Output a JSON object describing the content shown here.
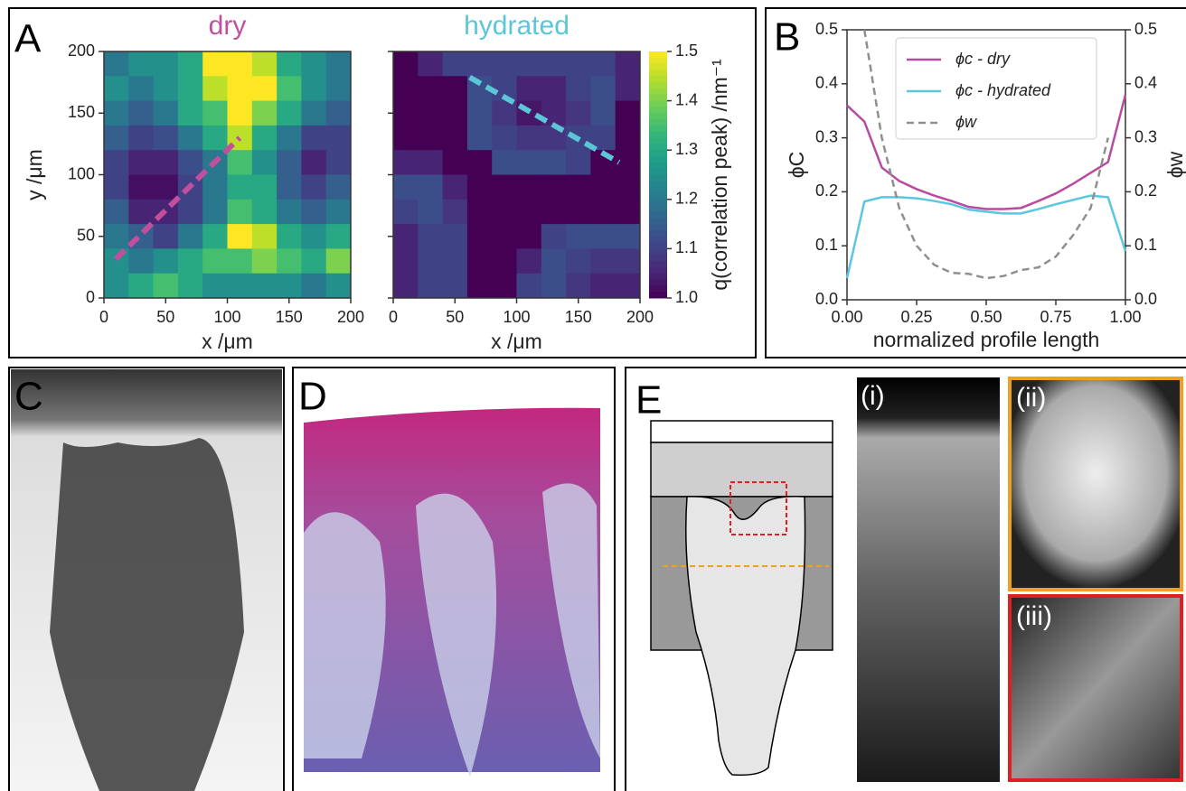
{
  "panels": {
    "a": "A",
    "b": "B",
    "c": "C",
    "d": "D",
    "e": "E",
    "e_i": "(i)",
    "e_ii": "(ii)",
    "e_iii": "(iii)"
  },
  "chart_data": [
    {
      "type": "heatmap",
      "title": "dry",
      "title_color": "#c0509e",
      "xlabel": "x /μm",
      "ylabel": "y /μm",
      "xlim": [
        0,
        200
      ],
      "ylim": [
        0,
        200
      ],
      "xticks": [
        0,
        50,
        100,
        150,
        200
      ],
      "yticks": [
        0,
        50,
        100,
        150,
        200
      ],
      "show_ytick_labels": true,
      "x": [
        10,
        30,
        50,
        70,
        90,
        110,
        130,
        150,
        170,
        190
      ],
      "y": [
        190,
        170,
        150,
        130,
        110,
        90,
        70,
        50,
        30,
        10
      ],
      "z": [
        [
          1.2,
          1.25,
          1.25,
          1.3,
          1.5,
          1.5,
          1.45,
          1.3,
          1.25,
          1.2
        ],
        [
          1.25,
          1.2,
          1.25,
          1.3,
          1.45,
          1.5,
          1.5,
          1.35,
          1.25,
          1.2
        ],
        [
          1.2,
          1.15,
          1.2,
          1.3,
          1.35,
          1.5,
          1.4,
          1.3,
          1.2,
          1.15
        ],
        [
          1.15,
          1.1,
          1.12,
          1.2,
          1.3,
          1.45,
          1.3,
          1.2,
          1.1,
          1.1
        ],
        [
          1.1,
          1.05,
          1.05,
          1.12,
          1.2,
          1.35,
          1.25,
          1.15,
          1.05,
          1.1
        ],
        [
          1.1,
          1.02,
          1.02,
          1.1,
          1.2,
          1.3,
          1.3,
          1.15,
          1.1,
          1.15
        ],
        [
          1.15,
          1.05,
          1.05,
          1.1,
          1.2,
          1.35,
          1.3,
          1.2,
          1.15,
          1.2
        ],
        [
          1.2,
          1.15,
          1.1,
          1.2,
          1.3,
          1.5,
          1.45,
          1.3,
          1.25,
          1.3
        ],
        [
          1.25,
          1.2,
          1.25,
          1.3,
          1.35,
          1.35,
          1.4,
          1.35,
          1.3,
          1.4
        ],
        [
          1.25,
          1.3,
          1.35,
          1.3,
          1.25,
          1.25,
          1.25,
          1.25,
          1.2,
          1.25
        ]
      ],
      "zlim": [
        1.0,
        1.5
      ],
      "profile": {
        "x": [
          9.5,
          110
        ],
        "y": [
          31.5,
          130
        ],
        "color": "#c0509e"
      }
    },
    {
      "type": "heatmap",
      "title": "hydrated",
      "title_color": "#5bc6d8",
      "xlabel": "x /μm",
      "xlim": [
        0,
        200
      ],
      "ylim": [
        0,
        200
      ],
      "xticks": [
        0,
        50,
        100,
        150,
        200
      ],
      "yticks": [
        0,
        50,
        100,
        150,
        200
      ],
      "show_ytick_labels": false,
      "x": [
        10,
        30,
        50,
        70,
        90,
        110,
        130,
        150,
        170,
        190
      ],
      "y": [
        190,
        170,
        150,
        130,
        110,
        90,
        70,
        50,
        30,
        10
      ],
      "z": [
        [
          1.0,
          1.05,
          1.1,
          1.1,
          1.1,
          1.1,
          1.1,
          1.1,
          1.1,
          1.05
        ],
        [
          1.0,
          1.0,
          1.0,
          1.12,
          1.1,
          1.05,
          1.05,
          1.1,
          1.12,
          1.05
        ],
        [
          1.0,
          1.0,
          1.0,
          1.12,
          1.08,
          1.03,
          1.05,
          1.08,
          1.12,
          1.0
        ],
        [
          1.0,
          1.0,
          1.0,
          1.12,
          1.1,
          1.08,
          1.08,
          1.1,
          1.1,
          1.0
        ],
        [
          1.05,
          1.05,
          1.0,
          1.0,
          1.12,
          1.12,
          1.12,
          1.1,
          1.0,
          1.0
        ],
        [
          1.12,
          1.12,
          1.05,
          1.0,
          1.0,
          1.0,
          1.0,
          1.0,
          1.0,
          1.0
        ],
        [
          1.1,
          1.12,
          1.08,
          1.0,
          1.0,
          1.0,
          1.0,
          1.0,
          1.0,
          1.0
        ],
        [
          1.05,
          1.1,
          1.1,
          1.0,
          1.0,
          1.0,
          1.1,
          1.12,
          1.12,
          1.12
        ],
        [
          1.05,
          1.1,
          1.1,
          1.0,
          1.0,
          1.05,
          1.12,
          1.1,
          1.08,
          1.08
        ],
        [
          1.05,
          1.1,
          1.1,
          1.0,
          1.0,
          1.1,
          1.12,
          1.08,
          1.05,
          1.05
        ]
      ],
      "zlim": [
        1.0,
        1.5
      ],
      "colorbar": true,
      "colorbar_label": "q(correlation peak) /nm⁻¹",
      "zticks": [
        {
          "value": 1.0,
          "label": "1.0"
        },
        1.1,
        1.2,
        1.3,
        1.4,
        1.5
      ],
      "profile": {
        "x": [
          62,
          183
        ],
        "y": [
          179,
          110
        ],
        "color": "#5bc6d8"
      }
    },
    {
      "type": "line",
      "xlabel": "normalized profile length",
      "ylabel": "ϕC",
      "y2label": "ϕw",
      "xlim": [
        0,
        1
      ],
      "ylim": [
        0,
        0.5
      ],
      "y2lim": [
        0,
        0.5
      ],
      "xticks": [
        {
          "value": 0,
          "label": "0.00"
        },
        {
          "value": 0.25,
          "label": "0.25"
        },
        {
          "value": 0.5,
          "label": "0.50"
        },
        {
          "value": 0.75,
          "label": "0.75"
        },
        {
          "value": 1,
          "label": "1.00"
        }
      ],
      "yticks": [
        {
          "value": 0,
          "label": "0.0"
        },
        0.1,
        0.2,
        0.3,
        0.4,
        0.5
      ],
      "y2ticks": [
        {
          "value": 0,
          "label": "0.0"
        },
        0.1,
        0.2,
        0.3,
        0.4,
        0.5
      ],
      "legend": "upper-left",
      "x": [
        0,
        0.0625,
        0.125,
        0.1875,
        0.25,
        0.3125,
        0.375,
        0.4375,
        0.5,
        0.5625,
        0.625,
        0.6875,
        0.75,
        0.8125,
        0.875,
        0.9375,
        1
      ],
      "series": [
        {
          "name": "ϕc - dry",
          "color": "#b84aa0",
          "values": [
            0.36,
            0.33,
            0.245,
            0.22,
            0.205,
            0.193,
            0.183,
            0.172,
            0.168,
            0.168,
            0.17,
            0.183,
            0.197,
            0.215,
            0.235,
            0.255,
            0.38
          ]
        },
        {
          "name": "ϕc - hydrated",
          "color": "#5bc6e0",
          "values": [
            0.04,
            0.182,
            0.19,
            0.19,
            0.188,
            0.183,
            0.177,
            0.167,
            0.163,
            0.16,
            0.16,
            0.168,
            0.177,
            0.185,
            0.193,
            0.19,
            0.09
          ]
        },
        {
          "name": "ϕw",
          "color": "#8f8f8f",
          "dashed": true,
          "axis": "y2",
          "values": [
            null,
            0.5,
            0.3,
            0.17,
            0.1,
            0.065,
            0.05,
            0.048,
            0.04,
            0.044,
            0.055,
            0.06,
            0.08,
            0.12,
            0.17,
            0.3,
            null
          ]
        }
      ]
    }
  ]
}
